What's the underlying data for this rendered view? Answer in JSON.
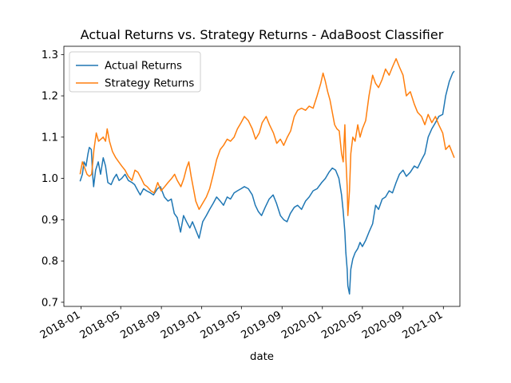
{
  "chart_data": {
    "type": "line",
    "title": "Actual Returns vs. Strategy Returns - AdaBoost Classifier",
    "xlabel": "date",
    "ylabel": "",
    "x_axis_type": "date",
    "xlim": [
      "2017-11-10",
      "2021-02-20"
    ],
    "ylim": [
      0.69,
      1.32
    ],
    "x_ticks": [
      "2018-01",
      "2018-05",
      "2018-09",
      "2019-01",
      "2019-05",
      "2019-09",
      "2020-01",
      "2020-05",
      "2020-09",
      "2021-01"
    ],
    "y_ticks": [
      0.7,
      0.8,
      0.9,
      1.0,
      1.1,
      1.2,
      1.3
    ],
    "y_tick_labels": [
      "0.7",
      "0.8",
      "0.9",
      "1.0",
      "1.1",
      "1.2",
      "1.3"
    ],
    "grid": false,
    "legend_position": "top-left",
    "series": [
      {
        "name": "Actual Returns",
        "color": "#1f77b4",
        "points": [
          [
            "2017-12-29",
            0.993
          ],
          [
            "2018-01-05",
            1.01
          ],
          [
            "2018-01-10",
            1.04
          ],
          [
            "2018-01-16",
            1.03
          ],
          [
            "2018-01-22",
            1.06
          ],
          [
            "2018-01-26",
            1.075
          ],
          [
            "2018-02-01",
            1.07
          ],
          [
            "2018-02-05",
            1.01
          ],
          [
            "2018-02-08",
            0.98
          ],
          [
            "2018-02-14",
            1.02
          ],
          [
            "2018-02-22",
            1.04
          ],
          [
            "2018-03-01",
            1.01
          ],
          [
            "2018-03-09",
            1.05
          ],
          [
            "2018-03-16",
            1.03
          ],
          [
            "2018-03-23",
            0.99
          ],
          [
            "2018-04-02",
            0.985
          ],
          [
            "2018-04-10",
            1.0
          ],
          [
            "2018-04-18",
            1.01
          ],
          [
            "2018-04-26",
            0.995
          ],
          [
            "2018-05-04",
            1.0
          ],
          [
            "2018-05-14",
            1.01
          ],
          [
            "2018-05-24",
            0.995
          ],
          [
            "2018-06-04",
            0.99
          ],
          [
            "2018-06-12",
            0.985
          ],
          [
            "2018-06-22",
            0.97
          ],
          [
            "2018-06-29",
            0.96
          ],
          [
            "2018-07-09",
            0.975
          ],
          [
            "2018-07-18",
            0.97
          ],
          [
            "2018-07-30",
            0.965
          ],
          [
            "2018-08-08",
            0.96
          ],
          [
            "2018-08-20",
            0.975
          ],
          [
            "2018-08-29",
            0.98
          ],
          [
            "2018-09-10",
            0.955
          ],
          [
            "2018-09-21",
            0.945
          ],
          [
            "2018-10-01",
            0.95
          ],
          [
            "2018-10-10",
            0.915
          ],
          [
            "2018-10-19",
            0.905
          ],
          [
            "2018-10-29",
            0.87
          ],
          [
            "2018-11-07",
            0.91
          ],
          [
            "2018-11-16",
            0.895
          ],
          [
            "2018-11-26",
            0.88
          ],
          [
            "2018-12-04",
            0.895
          ],
          [
            "2018-12-14",
            0.875
          ],
          [
            "2018-12-24",
            0.855
          ],
          [
            "2019-01-04",
            0.895
          ],
          [
            "2019-01-15",
            0.91
          ],
          [
            "2019-01-25",
            0.925
          ],
          [
            "2019-02-05",
            0.94
          ],
          [
            "2019-02-15",
            0.955
          ],
          [
            "2019-02-26",
            0.945
          ],
          [
            "2019-03-08",
            0.935
          ],
          [
            "2019-03-19",
            0.955
          ],
          [
            "2019-03-29",
            0.95
          ],
          [
            "2019-04-09",
            0.965
          ],
          [
            "2019-04-19",
            0.97
          ],
          [
            "2019-04-30",
            0.975
          ],
          [
            "2019-05-10",
            0.98
          ],
          [
            "2019-05-22",
            0.975
          ],
          [
            "2019-06-03",
            0.96
          ],
          [
            "2019-06-12",
            0.935
          ],
          [
            "2019-06-21",
            0.92
          ],
          [
            "2019-07-01",
            0.91
          ],
          [
            "2019-07-12",
            0.93
          ],
          [
            "2019-07-24",
            0.95
          ],
          [
            "2019-08-05",
            0.96
          ],
          [
            "2019-08-15",
            0.94
          ],
          [
            "2019-08-27",
            0.91
          ],
          [
            "2019-09-06",
            0.9
          ],
          [
            "2019-09-16",
            0.895
          ],
          [
            "2019-09-26",
            0.915
          ],
          [
            "2019-10-08",
            0.93
          ],
          [
            "2019-10-18",
            0.935
          ],
          [
            "2019-10-30",
            0.925
          ],
          [
            "2019-11-11",
            0.945
          ],
          [
            "2019-11-22",
            0.955
          ],
          [
            "2019-12-04",
            0.97
          ],
          [
            "2019-12-16",
            0.975
          ],
          [
            "2019-12-30",
            0.99
          ],
          [
            "2020-01-10",
            1.0
          ],
          [
            "2020-01-21",
            1.015
          ],
          [
            "2020-01-31",
            1.025
          ],
          [
            "2020-02-10",
            1.02
          ],
          [
            "2020-02-20",
            1.0
          ],
          [
            "2020-02-28",
            0.96
          ],
          [
            "2020-03-04",
            0.92
          ],
          [
            "2020-03-09",
            0.87
          ],
          [
            "2020-03-12",
            0.82
          ],
          [
            "2020-03-16",
            0.78
          ],
          [
            "2020-03-18",
            0.74
          ],
          [
            "2020-03-23",
            0.72
          ],
          [
            "2020-03-27",
            0.78
          ],
          [
            "2020-04-02",
            0.805
          ],
          [
            "2020-04-09",
            0.82
          ],
          [
            "2020-04-17",
            0.83
          ],
          [
            "2020-04-24",
            0.845
          ],
          [
            "2020-05-01",
            0.835
          ],
          [
            "2020-05-11",
            0.85
          ],
          [
            "2020-05-21",
            0.87
          ],
          [
            "2020-06-01",
            0.89
          ],
          [
            "2020-06-10",
            0.935
          ],
          [
            "2020-06-19",
            0.925
          ],
          [
            "2020-06-30",
            0.95
          ],
          [
            "2020-07-10",
            0.955
          ],
          [
            "2020-07-21",
            0.97
          ],
          [
            "2020-07-31",
            0.965
          ],
          [
            "2020-08-11",
            0.99
          ],
          [
            "2020-08-21",
            1.01
          ],
          [
            "2020-09-01",
            1.02
          ],
          [
            "2020-09-11",
            1.005
          ],
          [
            "2020-09-23",
            1.015
          ],
          [
            "2020-10-05",
            1.03
          ],
          [
            "2020-10-15",
            1.025
          ],
          [
            "2020-10-27",
            1.045
          ],
          [
            "2020-11-06",
            1.06
          ],
          [
            "2020-11-16",
            1.1
          ],
          [
            "2020-11-27",
            1.12
          ],
          [
            "2020-12-08",
            1.135
          ],
          [
            "2020-12-18",
            1.15
          ],
          [
            "2020-12-30",
            1.155
          ],
          [
            "2021-01-08",
            1.2
          ],
          [
            "2021-01-19",
            1.235
          ],
          [
            "2021-01-29",
            1.255
          ],
          [
            "2021-02-03",
            1.26
          ]
        ]
      },
      {
        "name": "Strategy Returns",
        "color": "#ff7f0e",
        "points": [
          [
            "2017-12-29",
            1.01
          ],
          [
            "2018-01-05",
            1.04
          ],
          [
            "2018-01-12",
            1.025
          ],
          [
            "2018-01-19",
            1.01
          ],
          [
            "2018-01-26",
            1.005
          ],
          [
            "2018-02-02",
            1.01
          ],
          [
            "2018-02-09",
            1.07
          ],
          [
            "2018-02-16",
            1.11
          ],
          [
            "2018-02-23",
            1.09
          ],
          [
            "2018-03-02",
            1.095
          ],
          [
            "2018-03-09",
            1.1
          ],
          [
            "2018-03-16",
            1.09
          ],
          [
            "2018-03-21",
            1.12
          ],
          [
            "2018-03-28",
            1.09
          ],
          [
            "2018-04-06",
            1.065
          ],
          [
            "2018-04-16",
            1.05
          ],
          [
            "2018-04-25",
            1.04
          ],
          [
            "2018-05-04",
            1.03
          ],
          [
            "2018-05-14",
            1.02
          ],
          [
            "2018-05-24",
            1.005
          ],
          [
            "2018-06-04",
            0.995
          ],
          [
            "2018-06-13",
            1.02
          ],
          [
            "2018-06-22",
            1.015
          ],
          [
            "2018-07-02",
            1.0
          ],
          [
            "2018-07-11",
            0.985
          ],
          [
            "2018-07-20",
            0.98
          ],
          [
            "2018-07-31",
            0.97
          ],
          [
            "2018-08-10",
            0.965
          ],
          [
            "2018-08-21",
            0.99
          ],
          [
            "2018-08-31",
            0.97
          ],
          [
            "2018-09-11",
            0.98
          ],
          [
            "2018-09-21",
            0.99
          ],
          [
            "2018-10-02",
            1.0
          ],
          [
            "2018-10-11",
            1.01
          ],
          [
            "2018-10-19",
            0.995
          ],
          [
            "2018-10-30",
            0.98
          ],
          [
            "2018-11-08",
            1.0
          ],
          [
            "2018-11-16",
            1.025
          ],
          [
            "2018-11-23",
            1.04
          ],
          [
            "2018-11-30",
            1.005
          ],
          [
            "2018-12-07",
            0.975
          ],
          [
            "2018-12-14",
            0.945
          ],
          [
            "2018-12-24",
            0.925
          ],
          [
            "2019-01-04",
            0.94
          ],
          [
            "2019-01-15",
            0.955
          ],
          [
            "2019-01-25",
            0.975
          ],
          [
            "2019-02-05",
            1.01
          ],
          [
            "2019-02-15",
            1.045
          ],
          [
            "2019-02-26",
            1.07
          ],
          [
            "2019-03-08",
            1.08
          ],
          [
            "2019-03-19",
            1.095
          ],
          [
            "2019-03-29",
            1.09
          ],
          [
            "2019-04-09",
            1.1
          ],
          [
            "2019-04-19",
            1.12
          ],
          [
            "2019-04-30",
            1.135
          ],
          [
            "2019-05-10",
            1.15
          ],
          [
            "2019-05-22",
            1.14
          ],
          [
            "2019-06-03",
            1.12
          ],
          [
            "2019-06-13",
            1.095
          ],
          [
            "2019-06-24",
            1.11
          ],
          [
            "2019-07-03",
            1.135
          ],
          [
            "2019-07-15",
            1.15
          ],
          [
            "2019-07-25",
            1.13
          ],
          [
            "2019-08-06",
            1.11
          ],
          [
            "2019-08-16",
            1.085
          ],
          [
            "2019-08-27",
            1.095
          ],
          [
            "2019-09-06",
            1.08
          ],
          [
            "2019-09-17",
            1.1
          ],
          [
            "2019-09-27",
            1.115
          ],
          [
            "2019-10-08",
            1.15
          ],
          [
            "2019-10-18",
            1.165
          ],
          [
            "2019-10-30",
            1.17
          ],
          [
            "2019-11-11",
            1.165
          ],
          [
            "2019-11-22",
            1.175
          ],
          [
            "2019-12-04",
            1.17
          ],
          [
            "2019-12-16",
            1.2
          ],
          [
            "2019-12-27",
            1.23
          ],
          [
            "2020-01-03",
            1.255
          ],
          [
            "2020-01-10",
            1.235
          ],
          [
            "2020-01-17",
            1.21
          ],
          [
            "2020-01-24",
            1.19
          ],
          [
            "2020-01-31",
            1.16
          ],
          [
            "2020-02-07",
            1.13
          ],
          [
            "2020-02-14",
            1.12
          ],
          [
            "2020-02-21",
            1.115
          ],
          [
            "2020-02-28",
            1.06
          ],
          [
            "2020-03-04",
            1.04
          ],
          [
            "2020-03-09",
            1.13
          ],
          [
            "2020-03-12",
            1.05
          ],
          [
            "2020-03-16",
            0.98
          ],
          [
            "2020-03-18",
            0.91
          ],
          [
            "2020-03-23",
            0.97
          ],
          [
            "2020-03-27",
            1.06
          ],
          [
            "2020-04-02",
            1.1
          ],
          [
            "2020-04-09",
            1.09
          ],
          [
            "2020-04-17",
            1.13
          ],
          [
            "2020-04-24",
            1.1
          ],
          [
            "2020-05-01",
            1.12
          ],
          [
            "2020-05-11",
            1.14
          ],
          [
            "2020-05-21",
            1.2
          ],
          [
            "2020-06-01",
            1.25
          ],
          [
            "2020-06-10",
            1.23
          ],
          [
            "2020-06-19",
            1.22
          ],
          [
            "2020-06-30",
            1.24
          ],
          [
            "2020-07-10",
            1.265
          ],
          [
            "2020-07-21",
            1.25
          ],
          [
            "2020-07-31",
            1.27
          ],
          [
            "2020-08-11",
            1.29
          ],
          [
            "2020-08-21",
            1.27
          ],
          [
            "2020-09-01",
            1.25
          ],
          [
            "2020-09-11",
            1.2
          ],
          [
            "2020-09-23",
            1.21
          ],
          [
            "2020-10-05",
            1.18
          ],
          [
            "2020-10-15",
            1.16
          ],
          [
            "2020-10-27",
            1.15
          ],
          [
            "2020-11-06",
            1.13
          ],
          [
            "2020-11-16",
            1.155
          ],
          [
            "2020-11-27",
            1.135
          ],
          [
            "2020-12-08",
            1.15
          ],
          [
            "2020-12-18",
            1.13
          ],
          [
            "2020-12-30",
            1.11
          ],
          [
            "2021-01-08",
            1.07
          ],
          [
            "2021-01-19",
            1.08
          ],
          [
            "2021-01-29",
            1.06
          ],
          [
            "2021-02-03",
            1.05
          ]
        ]
      }
    ]
  }
}
